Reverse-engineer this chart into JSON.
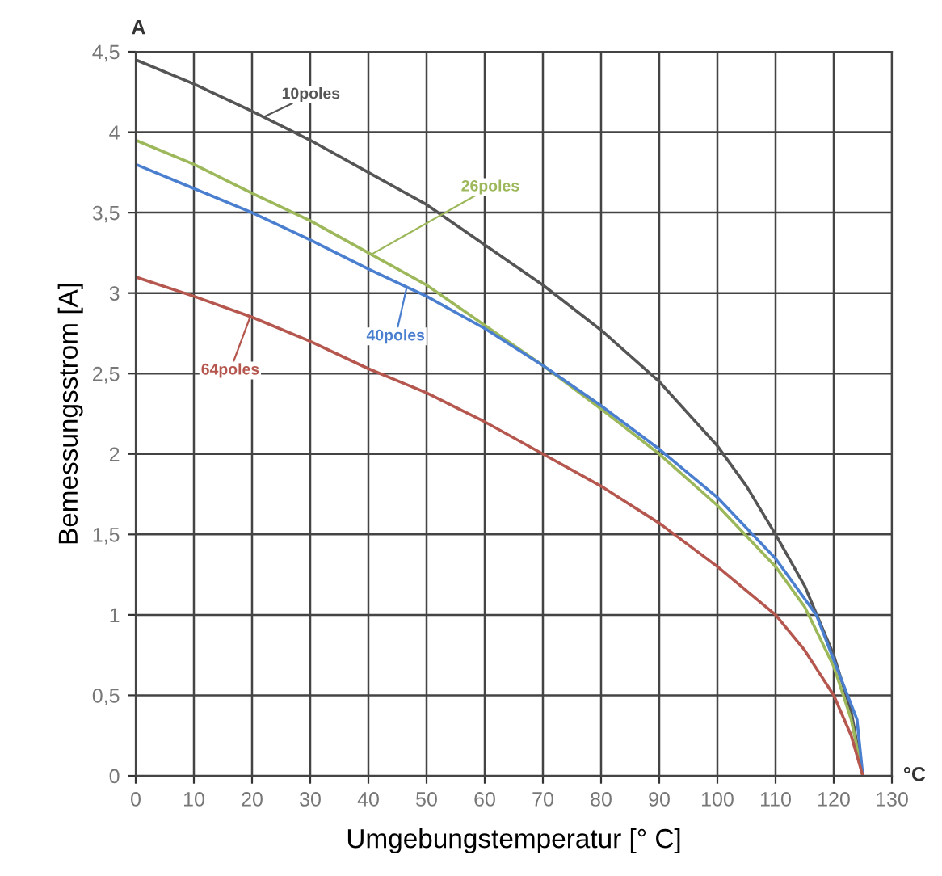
{
  "chart_data": {
    "type": "line",
    "xlabel": "Umgebungstemperatur [° C]",
    "ylabel": "Bemessungsstrom [A]",
    "annotations": [
      "A",
      "°C"
    ],
    "xlim": [
      0,
      130
    ],
    "ylim": [
      0,
      4.5
    ],
    "xticks": [
      0,
      10,
      20,
      30,
      40,
      50,
      60,
      70,
      80,
      90,
      100,
      110,
      120,
      130
    ],
    "yticks": [
      {
        "value": 0,
        "label": "0"
      },
      {
        "value": 0.5,
        "label": "0,5"
      },
      {
        "value": 1,
        "label": "1"
      },
      {
        "value": 1.5,
        "label": "1,5"
      },
      {
        "value": 2,
        "label": "2"
      },
      {
        "value": 2.5,
        "label": "2,5"
      },
      {
        "value": 3,
        "label": "3"
      },
      {
        "value": 3.5,
        "label": "3,5"
      },
      {
        "value": 4,
        "label": "4"
      },
      {
        "value": 4.5,
        "label": "4,5"
      }
    ],
    "grid": true,
    "marker": "none",
    "line_style": "solid",
    "series": [
      {
        "name": "10poles",
        "color": "#555555",
        "x": [
          0,
          10,
          20,
          30,
          40,
          50,
          60,
          70,
          80,
          90,
          100,
          105,
          110,
          115,
          120,
          123,
          125
        ],
        "values": [
          4.45,
          4.3,
          4.13,
          3.95,
          3.75,
          3.55,
          3.3,
          3.05,
          2.77,
          2.45,
          2.05,
          1.8,
          1.5,
          1.18,
          0.75,
          0.4,
          0
        ]
      },
      {
        "name": "26poles",
        "color": "#9cb85a",
        "x": [
          0,
          10,
          20,
          30,
          40,
          50,
          60,
          70,
          80,
          90,
          100,
          110,
          115,
          120,
          123,
          125
        ],
        "values": [
          3.95,
          3.8,
          3.62,
          3.45,
          3.25,
          3.05,
          2.8,
          2.55,
          2.28,
          2.0,
          1.68,
          1.3,
          1.05,
          0.68,
          0.35,
          0
        ]
      },
      {
        "name": "40poles",
        "color": "#4a7fd0",
        "x": [
          0,
          10,
          20,
          30,
          40,
          50,
          60,
          70,
          80,
          90,
          100,
          110,
          117,
          120,
          124,
          125
        ],
        "values": [
          3.8,
          3.65,
          3.5,
          3.33,
          3.15,
          2.98,
          2.78,
          2.55,
          2.3,
          2.03,
          1.73,
          1.35,
          1.0,
          0.72,
          0.35,
          0
        ]
      },
      {
        "name": "64poles",
        "color": "#b5574e",
        "x": [
          0,
          10,
          20,
          30,
          40,
          50,
          60,
          70,
          80,
          90,
          100,
          110,
          115,
          120,
          123,
          125
        ],
        "values": [
          3.1,
          2.98,
          2.85,
          2.7,
          2.53,
          2.38,
          2.2,
          2.0,
          1.8,
          1.57,
          1.3,
          1.0,
          0.78,
          0.5,
          0.25,
          0
        ]
      }
    ]
  }
}
